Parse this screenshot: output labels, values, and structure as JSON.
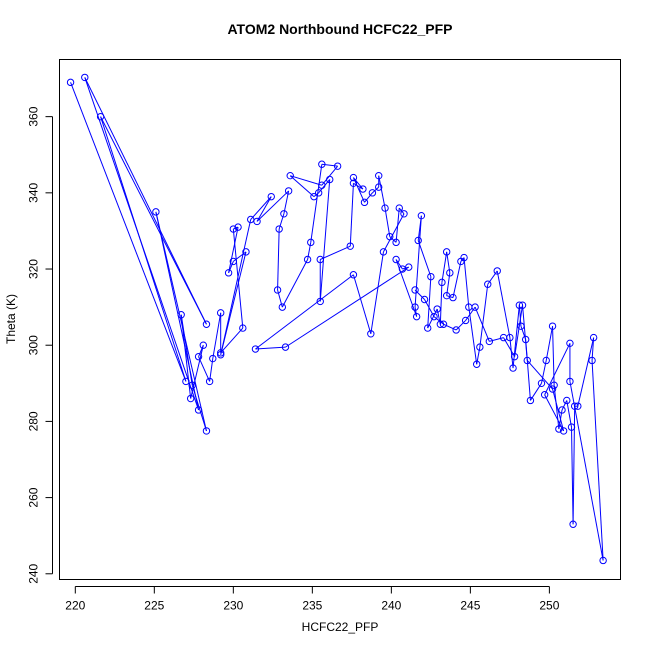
{
  "chart_data": {
    "type": "line",
    "title": "ATOM2 Northbound HCFC22_PFP",
    "xlabel": "HCFC22_PFP",
    "ylabel": "Theta (K)",
    "xlim": [
      219,
      254.5
    ],
    "ylim": [
      238.5,
      375
    ],
    "xticks": [
      220,
      225,
      230,
      235,
      240,
      245,
      250
    ],
    "yticks": [
      240,
      260,
      280,
      300,
      320,
      340,
      360
    ],
    "grid": false,
    "legend": "none",
    "marker": "open-circle",
    "color": "#0000ff",
    "series": [
      {
        "values_xy": [
          [
            219.7,
            369
          ],
          [
            227,
            290.5
          ],
          [
            221.6,
            360
          ],
          [
            228.3,
            305.5
          ],
          [
            220.6,
            370.3
          ],
          [
            227.8,
            283
          ],
          [
            225.1,
            335
          ],
          [
            228.3,
            277.5
          ],
          [
            227.4,
            289.5
          ],
          [
            226.7,
            308
          ],
          [
            227.3,
            286
          ],
          [
            228.1,
            300
          ],
          [
            227.8,
            297
          ],
          [
            228.5,
            290.5
          ],
          [
            228.7,
            296.5
          ],
          [
            229.2,
            308.5
          ],
          [
            229.2,
            298
          ],
          [
            230.6,
            304.5
          ],
          [
            230,
            330.5
          ],
          [
            230.3,
            331
          ],
          [
            229.7,
            319
          ],
          [
            230,
            322
          ],
          [
            230.8,
            324.5
          ],
          [
            229.2,
            297.5
          ],
          [
            231.1,
            333
          ],
          [
            232.4,
            339
          ],
          [
            231.5,
            332.5
          ],
          [
            233.5,
            340.5
          ],
          [
            233.2,
            334.5
          ],
          [
            232.9,
            330.5
          ],
          [
            232.8,
            314.5
          ],
          [
            233.1,
            310
          ],
          [
            234.7,
            322.5
          ],
          [
            234.9,
            327
          ],
          [
            235.6,
            347.5
          ],
          [
            236.6,
            347
          ],
          [
            235.6,
            342
          ],
          [
            233.6,
            344.5
          ],
          [
            235.1,
            339
          ],
          [
            235.4,
            340
          ],
          [
            236.1,
            343.5
          ],
          [
            235.5,
            311.5
          ],
          [
            235.5,
            322.5
          ],
          [
            237.4,
            326
          ],
          [
            237.6,
            342.5
          ],
          [
            238.2,
            341
          ],
          [
            237.6,
            344
          ],
          [
            238.3,
            337.5
          ],
          [
            238.8,
            340
          ],
          [
            239.2,
            341.5
          ],
          [
            239.2,
            344.5
          ],
          [
            239.6,
            336
          ],
          [
            239.9,
            328.5
          ],
          [
            240.3,
            327
          ],
          [
            240.5,
            336
          ],
          [
            240.8,
            334.5
          ],
          [
            239.5,
            324.5
          ],
          [
            238.7,
            303
          ],
          [
            237.6,
            318.5
          ],
          [
            231.4,
            299
          ],
          [
            233.3,
            299.5
          ],
          [
            241.1,
            320.5
          ],
          [
            240.7,
            320
          ],
          [
            240.3,
            322.5
          ],
          [
            241.6,
            307.5
          ],
          [
            241.5,
            310
          ],
          [
            241.9,
            334
          ],
          [
            241.7,
            327.5
          ],
          [
            242.5,
            318
          ],
          [
            242.3,
            304.5
          ],
          [
            242.9,
            309.5
          ],
          [
            243.1,
            305.5
          ],
          [
            243.2,
            316.5
          ],
          [
            243.5,
            324.5
          ],
          [
            243.7,
            319
          ],
          [
            243.5,
            313
          ],
          [
            243.9,
            312.5
          ],
          [
            244.4,
            322
          ],
          [
            244.6,
            323
          ],
          [
            244.9,
            310
          ],
          [
            245.4,
            295
          ],
          [
            245.6,
            299.5
          ],
          [
            246.1,
            316
          ],
          [
            246.7,
            319.5
          ],
          [
            247.5,
            302
          ],
          [
            247.7,
            294
          ],
          [
            248.1,
            310.5
          ],
          [
            248.2,
            305
          ],
          [
            248.5,
            301.5
          ],
          [
            248.8,
            285.5
          ],
          [
            249.5,
            290
          ],
          [
            249.8,
            296
          ],
          [
            250.2,
            305
          ],
          [
            250.3,
            289.5
          ],
          [
            250.6,
            278
          ],
          [
            250.8,
            283
          ],
          [
            251.1,
            285.5
          ],
          [
            251.4,
            278.5
          ],
          [
            251.5,
            253
          ],
          [
            251.6,
            284
          ],
          [
            251.8,
            284
          ],
          [
            252.8,
            302
          ],
          [
            252.7,
            296
          ],
          [
            253.4,
            243.5
          ],
          [
            251.3,
            290.5
          ],
          [
            251.3,
            300.5
          ],
          [
            249.7,
            287
          ],
          [
            250.9,
            277.5
          ],
          [
            250.2,
            288.5
          ],
          [
            248.6,
            296
          ],
          [
            248.3,
            310.5
          ],
          [
            247.8,
            297
          ],
          [
            247.1,
            302
          ],
          [
            246.2,
            301
          ],
          [
            245.3,
            310
          ],
          [
            244.7,
            306.5
          ],
          [
            244.1,
            304
          ],
          [
            243.3,
            305.5
          ],
          [
            242.7,
            307.5
          ],
          [
            242.1,
            312
          ],
          [
            241.5,
            314.5
          ]
        ]
      }
    ]
  }
}
